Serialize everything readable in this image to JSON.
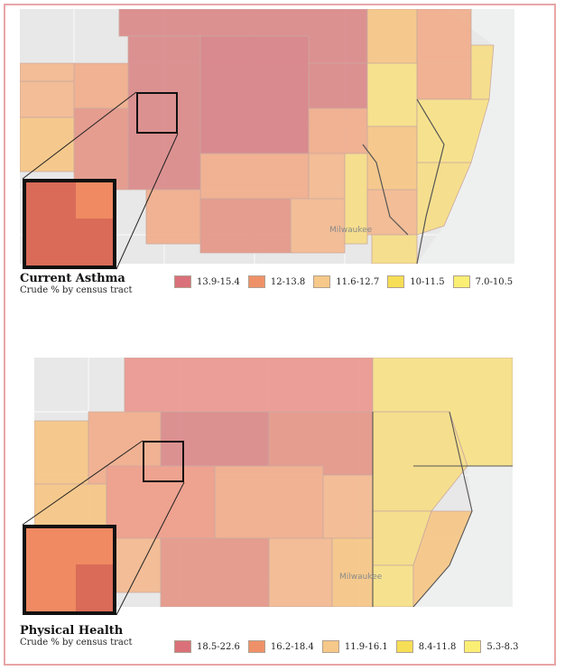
{
  "panels": [
    {
      "id": "asthma",
      "title": "Current Asthma",
      "subtitle": "Crude % by census tract",
      "city_label": "Milwaukee",
      "legend": [
        {
          "label": "13.9-15.4",
          "color": "#d9707a"
        },
        {
          "label": "12-13.8",
          "color": "#ef9168"
        },
        {
          "label": "11.6-12.7",
          "color": "#f6c889"
        },
        {
          "label": "10-11.5",
          "color": "#f6de56"
        },
        {
          "label": "7.0-10.5",
          "color": "#faef74"
        }
      ]
    },
    {
      "id": "physical",
      "title": "Physical Health",
      "subtitle": "Crude % by census tract",
      "city_label": "Milwaukee",
      "legend": [
        {
          "label": "18.5-22.6",
          "color": "#d9707a"
        },
        {
          "label": "16.2-18.4",
          "color": "#ef9168"
        },
        {
          "label": "11.9-16.1",
          "color": "#f6c889"
        },
        {
          "label": "8.4-11.8",
          "color": "#f6de56"
        },
        {
          "label": "5.3-8.3",
          "color": "#faef74"
        }
      ]
    }
  ]
}
